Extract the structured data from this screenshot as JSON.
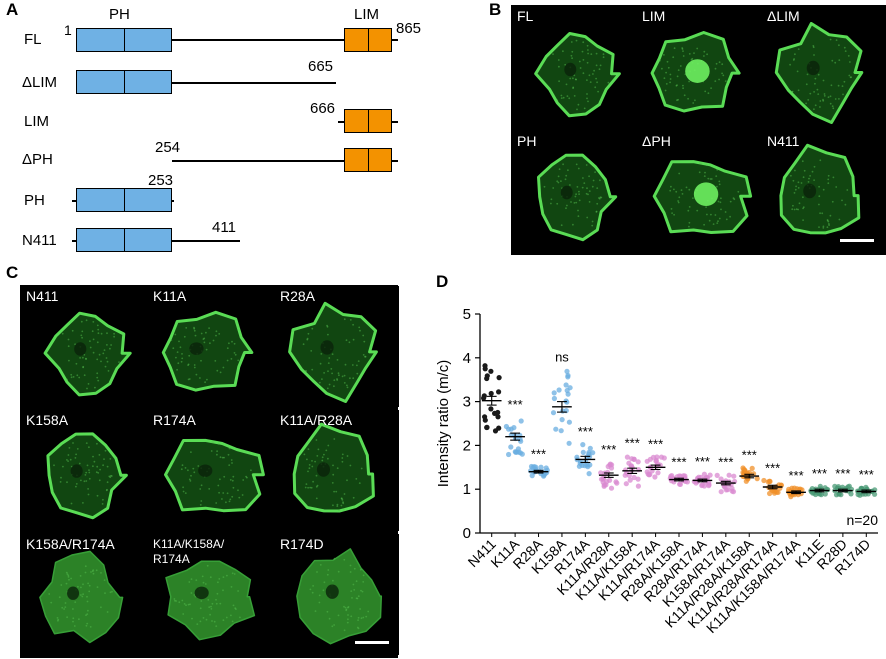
{
  "panelA": {
    "label": "A",
    "domain_labels": {
      "ph": "PH",
      "lim": "LIM"
    },
    "rows": [
      {
        "name": "FL",
        "start": "1",
        "end": "865"
      },
      {
        "name": "ΔLIM",
        "end": "665"
      },
      {
        "name": "LIM",
        "start": "666"
      },
      {
        "name": "ΔPH",
        "start": "254"
      },
      {
        "name": "PH",
        "end": "253"
      },
      {
        "name": "N411",
        "end": "411"
      }
    ]
  },
  "panelB": {
    "label": "B",
    "cells": [
      "FL",
      "LIM",
      "ΔLIM",
      "PH",
      "ΔPH",
      "N411"
    ]
  },
  "panelC": {
    "label": "C",
    "cells": [
      "N411",
      "K11A",
      "R28A",
      "K158A",
      "R174A",
      "K11A/R28A",
      "K158A/R174A",
      "K11A/K158A/\nR174A",
      "R174D"
    ]
  },
  "chart_data": {
    "type": "scatter",
    "panel_label": "D",
    "ylabel": "Intensity ratio (m/c)",
    "ylim": [
      0,
      5
    ],
    "yticks": [
      "0",
      "1",
      "2",
      "3",
      "4",
      "5"
    ],
    "categories": [
      "N411",
      "K11A",
      "R28A",
      "K158A",
      "R174A",
      "K11A/R28A",
      "K11A/K158A",
      "K11A/R174A",
      "R28A/K158A",
      "R28A/R174A",
      "K158A/R174A",
      "K11A/R28A/K158A",
      "K11A/R28A/R174A",
      "K11A/K158A/R174A",
      "K11E",
      "R28D",
      "R174D"
    ],
    "means": [
      3.02,
      2.2,
      1.4,
      2.88,
      1.68,
      1.32,
      1.42,
      1.5,
      1.22,
      1.2,
      1.14,
      1.3,
      1.05,
      0.93,
      0.97,
      0.97,
      0.95
    ],
    "sems": [
      0.1,
      0.08,
      0.03,
      0.12,
      0.07,
      0.05,
      0.06,
      0.05,
      0.03,
      0.03,
      0.04,
      0.04,
      0.04,
      0.03,
      0.03,
      0.03,
      0.03
    ],
    "spread": [
      0.85,
      0.45,
      0.12,
      0.85,
      0.35,
      0.3,
      0.35,
      0.25,
      0.12,
      0.15,
      0.2,
      0.2,
      0.15,
      0.1,
      0.1,
      0.1,
      0.1
    ],
    "significance": [
      "",
      "***",
      "***",
      "ns",
      "***",
      "***",
      "***",
      "***",
      "***",
      "***",
      "***",
      "***",
      "***",
      "***",
      "***",
      "***",
      "***"
    ],
    "point_colors": [
      "#1a1a1a",
      "#6aaee0",
      "#6aaee0",
      "#6aaee0",
      "#6aaee0",
      "#d98ad0",
      "#d98ad0",
      "#d98ad0",
      "#d98ad0",
      "#d98ad0",
      "#d98ad0",
      "#f0902a",
      "#f0902a",
      "#f0902a",
      "#4a9a76",
      "#4a9a76",
      "#4a9a76"
    ],
    "n_label": "n=20"
  }
}
